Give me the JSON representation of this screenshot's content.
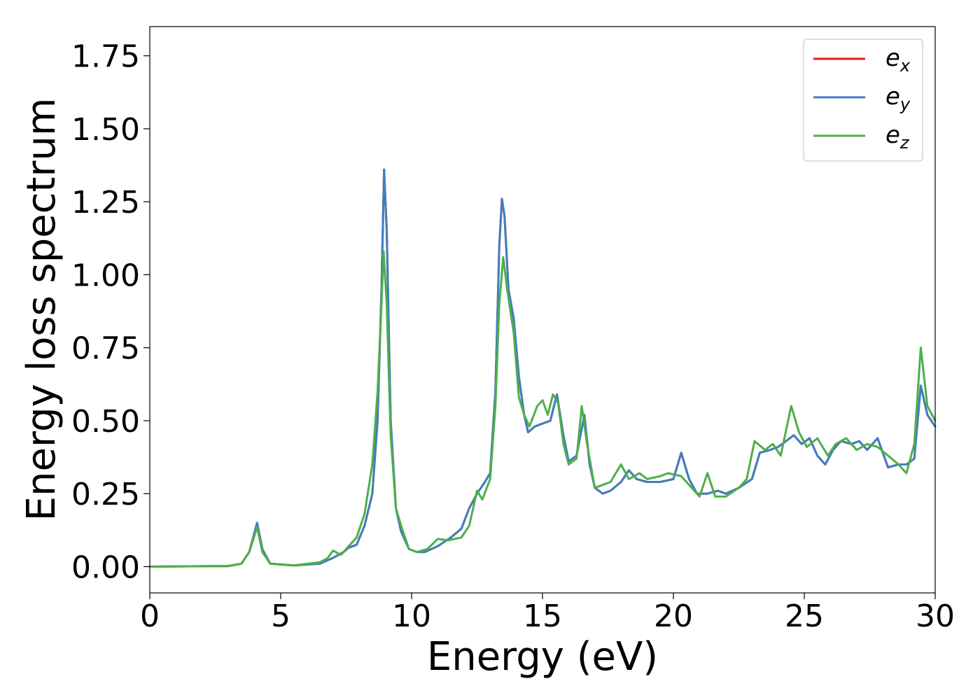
{
  "chart_data": {
    "type": "line",
    "title": "",
    "xlabel": "Energy (eV)",
    "ylabel": "Energy loss spectrum",
    "xlim": [
      0,
      30
    ],
    "ylim": [
      -0.09,
      1.85
    ],
    "xticks": [
      0,
      5,
      10,
      15,
      20,
      25,
      30
    ],
    "xtick_labels": [
      "0",
      "5",
      "10",
      "15",
      "20",
      "25",
      "30"
    ],
    "yticks": [
      0,
      0.25,
      0.5,
      0.75,
      1.0,
      1.25,
      1.5,
      1.75
    ],
    "ytick_labels": [
      "0.00",
      "0.25",
      "0.50",
      "0.75",
      "1.00",
      "1.25",
      "1.50",
      "1.75"
    ],
    "grid": false,
    "legend_position": "top-right",
    "series": [
      {
        "name": "e_x",
        "legend_base": "e",
        "legend_sub": "x",
        "color": "#e41a1c",
        "points": [
          [
            0,
            0
          ],
          [
            3.0,
            0.002
          ],
          [
            3.5,
            0.01
          ],
          [
            3.8,
            0.05
          ],
          [
            4.1,
            0.15
          ],
          [
            4.3,
            0.06
          ],
          [
            4.6,
            0.01
          ],
          [
            5.5,
            0.004
          ],
          [
            6.5,
            0.01
          ],
          [
            7.0,
            0.03
          ],
          [
            7.2,
            0.04
          ],
          [
            7.4,
            0.05
          ],
          [
            7.6,
            0.065
          ],
          [
            7.9,
            0.075
          ],
          [
            8.2,
            0.14
          ],
          [
            8.5,
            0.25
          ],
          [
            8.7,
            0.5
          ],
          [
            8.85,
            0.95
          ],
          [
            8.95,
            1.36
          ],
          [
            9.05,
            1.15
          ],
          [
            9.2,
            0.5
          ],
          [
            9.4,
            0.2
          ],
          [
            9.6,
            0.12
          ],
          [
            9.9,
            0.06
          ],
          [
            10.2,
            0.05
          ],
          [
            10.5,
            0.05
          ],
          [
            11.0,
            0.07
          ],
          [
            11.5,
            0.1
          ],
          [
            11.9,
            0.13
          ],
          [
            12.2,
            0.2
          ],
          [
            12.5,
            0.25
          ],
          [
            12.8,
            0.29
          ],
          [
            13.0,
            0.32
          ],
          [
            13.2,
            0.6
          ],
          [
            13.35,
            1.1
          ],
          [
            13.45,
            1.26
          ],
          [
            13.55,
            1.2
          ],
          [
            13.7,
            0.95
          ],
          [
            13.9,
            0.85
          ],
          [
            14.1,
            0.65
          ],
          [
            14.3,
            0.52
          ],
          [
            14.45,
            0.46
          ],
          [
            14.7,
            0.48
          ],
          [
            15.0,
            0.49
          ],
          [
            15.3,
            0.5
          ],
          [
            15.55,
            0.59
          ],
          [
            15.8,
            0.45
          ],
          [
            16.0,
            0.36
          ],
          [
            16.3,
            0.38
          ],
          [
            16.6,
            0.52
          ],
          [
            16.8,
            0.35
          ],
          [
            17.0,
            0.27
          ],
          [
            17.3,
            0.25
          ],
          [
            17.6,
            0.26
          ],
          [
            18.0,
            0.29
          ],
          [
            18.3,
            0.33
          ],
          [
            18.6,
            0.3
          ],
          [
            19.0,
            0.29
          ],
          [
            19.5,
            0.29
          ],
          [
            20.0,
            0.3
          ],
          [
            20.3,
            0.39
          ],
          [
            20.6,
            0.3
          ],
          [
            20.9,
            0.25
          ],
          [
            21.3,
            0.25
          ],
          [
            21.7,
            0.26
          ],
          [
            22.0,
            0.25
          ],
          [
            22.5,
            0.27
          ],
          [
            23.0,
            0.3
          ],
          [
            23.3,
            0.39
          ],
          [
            23.7,
            0.4
          ],
          [
            24.0,
            0.41
          ],
          [
            24.3,
            0.43
          ],
          [
            24.6,
            0.45
          ],
          [
            24.9,
            0.42
          ],
          [
            25.2,
            0.44
          ],
          [
            25.5,
            0.38
          ],
          [
            25.8,
            0.35
          ],
          [
            26.1,
            0.4
          ],
          [
            26.4,
            0.43
          ],
          [
            26.8,
            0.42
          ],
          [
            27.1,
            0.43
          ],
          [
            27.4,
            0.4
          ],
          [
            27.8,
            0.44
          ],
          [
            28.2,
            0.34
          ],
          [
            28.6,
            0.35
          ],
          [
            28.9,
            0.35
          ],
          [
            29.2,
            0.37
          ],
          [
            29.45,
            0.62
          ],
          [
            29.7,
            0.52
          ],
          [
            30.0,
            0.48
          ]
        ]
      },
      {
        "name": "e_y",
        "legend_base": "e",
        "legend_sub": "y",
        "color": "#3f7fbf",
        "points": [
          [
            0,
            0
          ],
          [
            3.0,
            0.002
          ],
          [
            3.5,
            0.01
          ],
          [
            3.8,
            0.05
          ],
          [
            4.1,
            0.15
          ],
          [
            4.3,
            0.06
          ],
          [
            4.6,
            0.01
          ],
          [
            5.5,
            0.004
          ],
          [
            6.5,
            0.01
          ],
          [
            7.0,
            0.03
          ],
          [
            7.2,
            0.04
          ],
          [
            7.4,
            0.05
          ],
          [
            7.6,
            0.065
          ],
          [
            7.9,
            0.075
          ],
          [
            8.2,
            0.14
          ],
          [
            8.5,
            0.25
          ],
          [
            8.7,
            0.5
          ],
          [
            8.85,
            0.95
          ],
          [
            8.95,
            1.36
          ],
          [
            9.05,
            1.15
          ],
          [
            9.2,
            0.5
          ],
          [
            9.4,
            0.2
          ],
          [
            9.6,
            0.12
          ],
          [
            9.9,
            0.06
          ],
          [
            10.2,
            0.05
          ],
          [
            10.5,
            0.05
          ],
          [
            11.0,
            0.07
          ],
          [
            11.5,
            0.1
          ],
          [
            11.9,
            0.13
          ],
          [
            12.2,
            0.2
          ],
          [
            12.5,
            0.25
          ],
          [
            12.8,
            0.29
          ],
          [
            13.0,
            0.32
          ],
          [
            13.2,
            0.6
          ],
          [
            13.35,
            1.1
          ],
          [
            13.45,
            1.26
          ],
          [
            13.55,
            1.2
          ],
          [
            13.7,
            0.95
          ],
          [
            13.9,
            0.85
          ],
          [
            14.1,
            0.65
          ],
          [
            14.3,
            0.52
          ],
          [
            14.45,
            0.46
          ],
          [
            14.7,
            0.48
          ],
          [
            15.0,
            0.49
          ],
          [
            15.3,
            0.5
          ],
          [
            15.55,
            0.59
          ],
          [
            15.8,
            0.45
          ],
          [
            16.0,
            0.36
          ],
          [
            16.3,
            0.38
          ],
          [
            16.6,
            0.52
          ],
          [
            16.8,
            0.35
          ],
          [
            17.0,
            0.27
          ],
          [
            17.3,
            0.25
          ],
          [
            17.6,
            0.26
          ],
          [
            18.0,
            0.29
          ],
          [
            18.3,
            0.33
          ],
          [
            18.6,
            0.3
          ],
          [
            19.0,
            0.29
          ],
          [
            19.5,
            0.29
          ],
          [
            20.0,
            0.3
          ],
          [
            20.3,
            0.39
          ],
          [
            20.6,
            0.3
          ],
          [
            20.9,
            0.25
          ],
          [
            21.3,
            0.25
          ],
          [
            21.7,
            0.26
          ],
          [
            22.0,
            0.25
          ],
          [
            22.5,
            0.27
          ],
          [
            23.0,
            0.3
          ],
          [
            23.3,
            0.39
          ],
          [
            23.7,
            0.4
          ],
          [
            24.0,
            0.41
          ],
          [
            24.3,
            0.43
          ],
          [
            24.6,
            0.45
          ],
          [
            24.9,
            0.42
          ],
          [
            25.2,
            0.44
          ],
          [
            25.5,
            0.38
          ],
          [
            25.8,
            0.35
          ],
          [
            26.1,
            0.4
          ],
          [
            26.4,
            0.43
          ],
          [
            26.8,
            0.42
          ],
          [
            27.1,
            0.43
          ],
          [
            27.4,
            0.4
          ],
          [
            27.8,
            0.44
          ],
          [
            28.2,
            0.34
          ],
          [
            28.6,
            0.35
          ],
          [
            28.9,
            0.35
          ],
          [
            29.2,
            0.37
          ],
          [
            29.45,
            0.62
          ],
          [
            29.7,
            0.52
          ],
          [
            30.0,
            0.48
          ]
        ]
      },
      {
        "name": "e_z",
        "legend_base": "e",
        "legend_sub": "z",
        "color": "#4daf4a",
        "points": [
          [
            0,
            0
          ],
          [
            3.0,
            0.002
          ],
          [
            3.5,
            0.01
          ],
          [
            3.8,
            0.05
          ],
          [
            4.1,
            0.135
          ],
          [
            4.3,
            0.05
          ],
          [
            4.6,
            0.01
          ],
          [
            5.5,
            0.004
          ],
          [
            6.5,
            0.015
          ],
          [
            6.8,
            0.03
          ],
          [
            7.0,
            0.055
          ],
          [
            7.3,
            0.04
          ],
          [
            7.6,
            0.07
          ],
          [
            7.9,
            0.1
          ],
          [
            8.2,
            0.18
          ],
          [
            8.5,
            0.35
          ],
          [
            8.7,
            0.6
          ],
          [
            8.85,
            0.9
          ],
          [
            8.93,
            1.08
          ],
          [
            9.05,
            0.9
          ],
          [
            9.2,
            0.45
          ],
          [
            9.4,
            0.2
          ],
          [
            9.6,
            0.14
          ],
          [
            9.9,
            0.06
          ],
          [
            10.2,
            0.05
          ],
          [
            10.6,
            0.06
          ],
          [
            11.0,
            0.095
          ],
          [
            11.4,
            0.09
          ],
          [
            11.9,
            0.1
          ],
          [
            12.2,
            0.14
          ],
          [
            12.5,
            0.26
          ],
          [
            12.7,
            0.23
          ],
          [
            13.0,
            0.3
          ],
          [
            13.2,
            0.55
          ],
          [
            13.35,
            0.9
          ],
          [
            13.5,
            1.06
          ],
          [
            13.65,
            0.95
          ],
          [
            13.9,
            0.8
          ],
          [
            14.1,
            0.58
          ],
          [
            14.3,
            0.52
          ],
          [
            14.5,
            0.48
          ],
          [
            14.8,
            0.55
          ],
          [
            15.0,
            0.57
          ],
          [
            15.2,
            0.52
          ],
          [
            15.4,
            0.59
          ],
          [
            15.6,
            0.56
          ],
          [
            15.8,
            0.42
          ],
          [
            16.0,
            0.35
          ],
          [
            16.3,
            0.37
          ],
          [
            16.5,
            0.55
          ],
          [
            16.7,
            0.42
          ],
          [
            17.0,
            0.27
          ],
          [
            17.3,
            0.28
          ],
          [
            17.6,
            0.29
          ],
          [
            18.0,
            0.35
          ],
          [
            18.3,
            0.3
          ],
          [
            18.7,
            0.32
          ],
          [
            19.0,
            0.3
          ],
          [
            19.5,
            0.31
          ],
          [
            19.8,
            0.32
          ],
          [
            20.3,
            0.31
          ],
          [
            20.6,
            0.28
          ],
          [
            21.0,
            0.24
          ],
          [
            21.3,
            0.32
          ],
          [
            21.6,
            0.24
          ],
          [
            22.0,
            0.24
          ],
          [
            22.5,
            0.27
          ],
          [
            22.8,
            0.3
          ],
          [
            23.1,
            0.43
          ],
          [
            23.5,
            0.4
          ],
          [
            23.8,
            0.42
          ],
          [
            24.1,
            0.38
          ],
          [
            24.5,
            0.55
          ],
          [
            24.8,
            0.46
          ],
          [
            25.1,
            0.41
          ],
          [
            25.5,
            0.44
          ],
          [
            25.9,
            0.38
          ],
          [
            26.2,
            0.42
          ],
          [
            26.6,
            0.44
          ],
          [
            27.0,
            0.4
          ],
          [
            27.4,
            0.42
          ],
          [
            27.8,
            0.41
          ],
          [
            28.2,
            0.38
          ],
          [
            28.6,
            0.35
          ],
          [
            28.9,
            0.32
          ],
          [
            29.2,
            0.42
          ],
          [
            29.45,
            0.75
          ],
          [
            29.7,
            0.55
          ],
          [
            30.0,
            0.5
          ]
        ]
      }
    ]
  }
}
